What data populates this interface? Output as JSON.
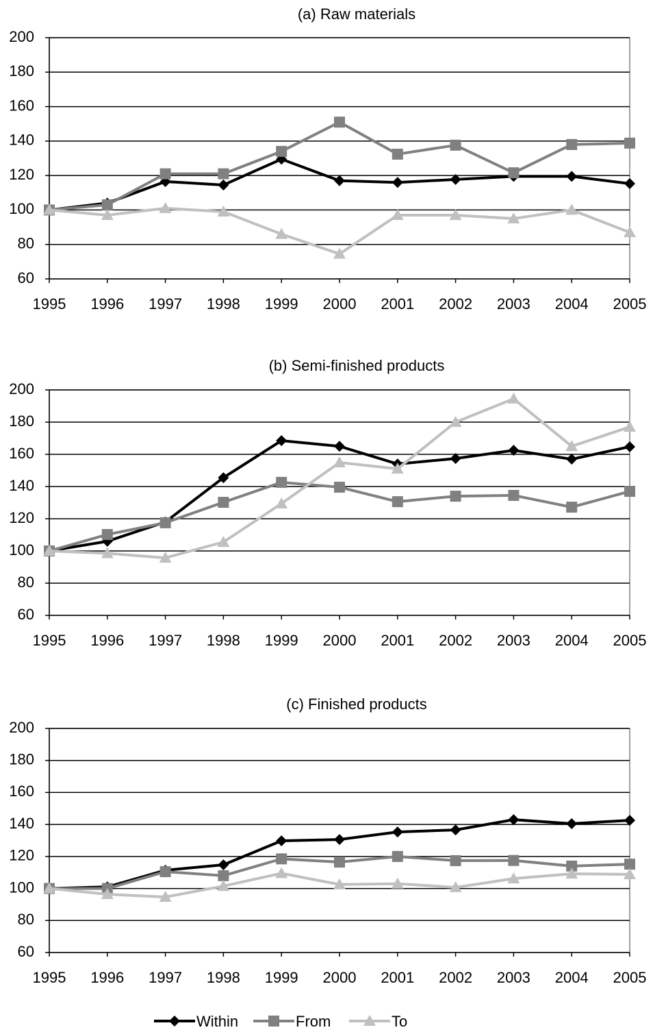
{
  "chart_data": [
    {
      "type": "line",
      "title": "(a)  Raw materials",
      "categories": [
        "1995",
        "1996",
        "1997",
        "1998",
        "1999",
        "2000",
        "2001",
        "2002",
        "2003",
        "2004",
        "2005"
      ],
      "ylim": [
        60,
        200
      ],
      "yticks": [
        60,
        80,
        100,
        120,
        140,
        160,
        180,
        200
      ],
      "grid": true,
      "series": [
        {
          "name": "Within",
          "color": "#000000",
          "marker": "diamond",
          "values": [
            100,
            104,
            116.5,
            114.5,
            129.5,
            117,
            116,
            117.7,
            119.5,
            119.5,
            115.3
          ]
        },
        {
          "name": "From",
          "color": "#808080",
          "marker": "square",
          "values": [
            100,
            103,
            121,
            121,
            134,
            151,
            132.4,
            137.6,
            121.6,
            138,
            138.8
          ]
        },
        {
          "name": "To",
          "color": "#c0c0c0",
          "marker": "triangle",
          "values": [
            100,
            97,
            101,
            99,
            86,
            74.5,
            97,
            97,
            95,
            100,
            87
          ]
        }
      ]
    },
    {
      "type": "line",
      "title": "(b)  Semi-finished products",
      "categories": [
        "1995",
        "1996",
        "1997",
        "1998",
        "1999",
        "2000",
        "2001",
        "2002",
        "2003",
        "2004",
        "2005"
      ],
      "ylim": [
        60,
        200
      ],
      "yticks": [
        60,
        80,
        100,
        120,
        140,
        160,
        180,
        200
      ],
      "grid": true,
      "series": [
        {
          "name": "Within",
          "color": "#000000",
          "marker": "diamond",
          "values": [
            100,
            106,
            118,
            145.5,
            168.5,
            165,
            154,
            157.4,
            162.5,
            157,
            164.7
          ]
        },
        {
          "name": "From",
          "color": "#808080",
          "marker": "square",
          "values": [
            100,
            110.2,
            117.5,
            130.2,
            142.6,
            139.6,
            130.6,
            134,
            134.5,
            127.2,
            137
          ]
        },
        {
          "name": "To",
          "color": "#c0c0c0",
          "marker": "triangle",
          "values": [
            100,
            98.5,
            95.7,
            105.5,
            129.4,
            154.9,
            151,
            180,
            194.5,
            165,
            177
          ]
        }
      ]
    },
    {
      "type": "line",
      "title": "(c) Finished products",
      "categories": [
        "1995",
        "1996",
        "1997",
        "1998",
        "1999",
        "2000",
        "2001",
        "2002",
        "2003",
        "2004",
        "2005"
      ],
      "ylim": [
        60,
        200
      ],
      "yticks": [
        60,
        80,
        100,
        120,
        140,
        160,
        180,
        200
      ],
      "grid": true,
      "series": [
        {
          "name": "Within",
          "color": "#000000",
          "marker": "diamond",
          "values": [
            100,
            101,
            111.4,
            114.8,
            129.8,
            130.6,
            135.3,
            136.6,
            143,
            140.5,
            142.6
          ]
        },
        {
          "name": "From",
          "color": "#808080",
          "marker": "square",
          "values": [
            100,
            100,
            110.5,
            108,
            118.5,
            116.5,
            120,
            117.4,
            117.5,
            114,
            115.2
          ]
        },
        {
          "name": "To",
          "color": "#c0c0c0",
          "marker": "triangle",
          "values": [
            100,
            96.4,
            94.7,
            101.5,
            109.5,
            102.5,
            103,
            100.7,
            106.2,
            109.2,
            108.8
          ]
        }
      ]
    }
  ]
}
